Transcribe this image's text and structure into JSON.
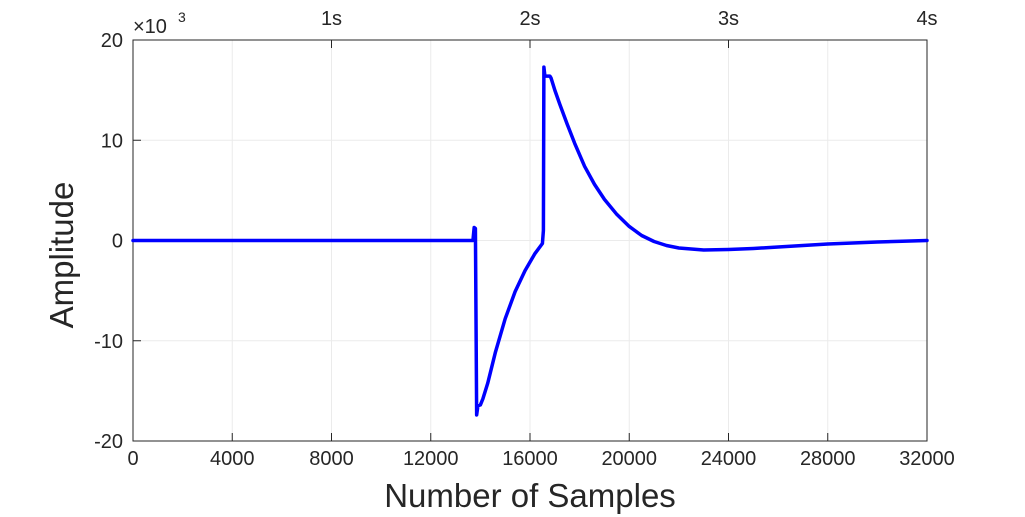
{
  "chart_data": {
    "type": "line",
    "title": "",
    "xlabel": "Number of Samples",
    "ylabel": "Amplitude",
    "xlim": [
      0,
      32000
    ],
    "ylim": [
      -20,
      20
    ],
    "y_exponent_label": "×10",
    "y_exponent_power": "3",
    "grid": true,
    "x_ticks": [
      0,
      4000,
      8000,
      12000,
      16000,
      20000,
      24000,
      28000,
      32000
    ],
    "x_tick_labels": [
      "0",
      "4000",
      "8000",
      "12000",
      "16000",
      "20000",
      "24000",
      "28000",
      "32000"
    ],
    "y_ticks": [
      -20,
      -10,
      0,
      10,
      20
    ],
    "y_tick_labels": [
      "-20",
      "-10",
      "0",
      "10",
      "20"
    ],
    "top_axis_ticks": [
      8000,
      16000,
      24000,
      32000
    ],
    "top_axis_labels": [
      "1s",
      "2s",
      "3s",
      "4s"
    ],
    "series": [
      {
        "color": "#0000ff",
        "x": [
          0,
          2000,
          4000,
          6000,
          8000,
          10000,
          12000,
          13700,
          13750,
          13800,
          13850,
          13900,
          14000,
          14100,
          14300,
          14600,
          15000,
          15400,
          15800,
          16200,
          16500,
          16540,
          16560,
          16600,
          16700,
          16800,
          16850,
          16900,
          17000,
          17200,
          17500,
          17800,
          18200,
          18600,
          19000,
          19500,
          20000,
          20500,
          21000,
          21500,
          22000,
          23000,
          24000,
          25000,
          26000,
          27000,
          28000,
          29000,
          30000,
          31000,
          32000
        ],
        "y": [
          0,
          0,
          0,
          0,
          0,
          0,
          0,
          0,
          1.3,
          1.2,
          -17.4,
          -16.5,
          -16.4,
          -15.8,
          -14.2,
          -11.2,
          -7.8,
          -5.1,
          -3.0,
          -1.3,
          -0.3,
          1.0,
          17.3,
          16.4,
          16.4,
          16.4,
          16.2,
          15.8,
          15.0,
          13.6,
          11.6,
          9.7,
          7.4,
          5.6,
          4.1,
          2.6,
          1.4,
          0.5,
          -0.1,
          -0.5,
          -0.75,
          -0.95,
          -0.9,
          -0.8,
          -0.65,
          -0.5,
          -0.35,
          -0.25,
          -0.15,
          -0.08,
          0
        ]
      }
    ]
  }
}
